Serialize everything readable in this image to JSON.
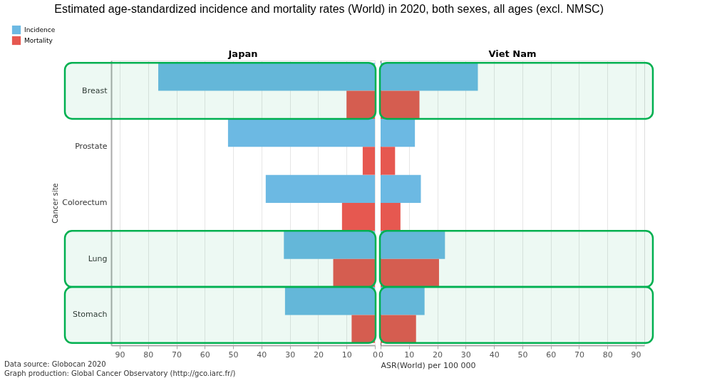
{
  "chart_data": [
    {
      "type": "bar",
      "orientation": "horizontal",
      "title": "Estimated age-standardized incidence and mortality rates (World) in 2020, both sexes, all ages (excl. NMSC)",
      "subtitle": "Japan",
      "ylabel": "Cancer site",
      "categories": [
        "Breast",
        "Prostate",
        "Colorectum",
        "Lung",
        "Stomach"
      ],
      "series": [
        {
          "name": "Incidence",
          "color": "#6cb9e3",
          "values": [
            76.4,
            51.8,
            38.5,
            32.1,
            31.7
          ]
        },
        {
          "name": "Mortality",
          "color": "#e65850",
          "values": [
            10.0,
            4.3,
            11.6,
            14.7,
            8.2
          ]
        }
      ],
      "xlim": [
        93,
        0
      ],
      "xticks": [
        90,
        80,
        70,
        60,
        50,
        40,
        30,
        20,
        10,
        0
      ],
      "grid": "x",
      "legend": "top left",
      "bands": [
        {
          "axis": "y",
          "from": "Breast",
          "to": "Breast",
          "color": "#00b050"
        },
        {
          "axis": "y",
          "from": "Lung",
          "to": "Lung",
          "color": "#00b050"
        },
        {
          "axis": "y",
          "from": "Stomach",
          "to": "Stomach",
          "color": "#00b050"
        }
      ],
      "annotations": [
        "Data source: Globocan 2020",
        "Graph production: Global Cancer Observatory (http://gco.iarc.fr/)"
      ]
    },
    {
      "type": "bar",
      "orientation": "horizontal",
      "subtitle": "Viet Nam",
      "categories": [
        "Breast",
        "Prostate",
        "Colorectum",
        "Lung",
        "Stomach"
      ],
      "series": [
        {
          "name": "Incidence",
          "color": "#6cb9e3",
          "values": [
            34.3,
            12.1,
            14.2,
            22.7,
            15.5
          ]
        },
        {
          "name": "Mortality",
          "color": "#e65850",
          "values": [
            13.7,
            5.1,
            7.0,
            20.6,
            12.5
          ]
        }
      ],
      "xlabel": "ASR(World) per 100 000",
      "xlim": [
        0,
        93
      ],
      "xticks": [
        0,
        10,
        20,
        30,
        40,
        50,
        60,
        70,
        80,
        90
      ],
      "grid": "x",
      "tick_labels": "x",
      "bands": [
        {
          "axis": "y",
          "from": "Breast",
          "to": "Breast",
          "color": "#00b050"
        },
        {
          "axis": "y",
          "from": "Lung",
          "to": "Lung",
          "color": "#00b050"
        },
        {
          "axis": "y",
          "from": "Stomach",
          "to": "Stomach",
          "color": "#00b050"
        }
      ]
    }
  ]
}
